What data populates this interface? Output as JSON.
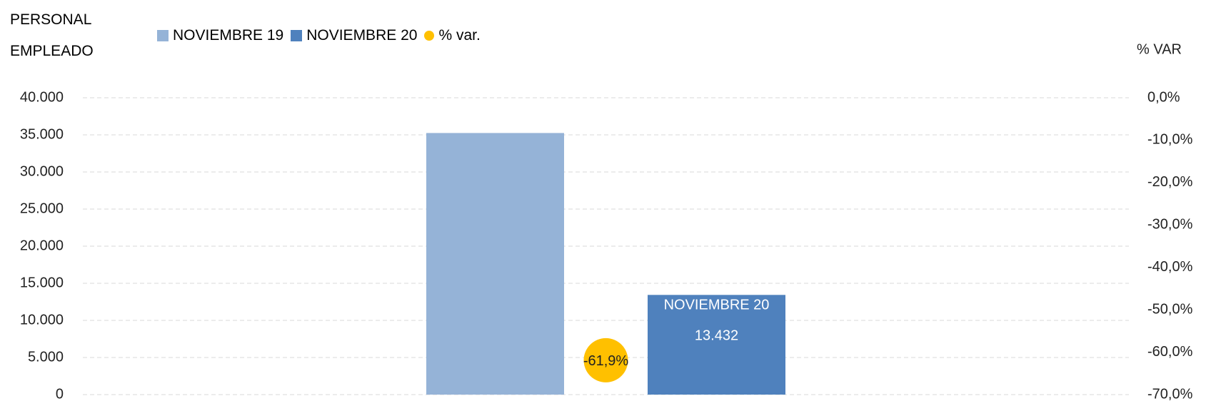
{
  "chart_data": {
    "type": "bar",
    "ylabel": "PERSONAL EMPLEADO",
    "y2label": "% VAR",
    "categories": [
      null
    ],
    "series": [
      {
        "name": "NOVIEMBRE 19",
        "color": "#95b3d7",
        "values": [
          35250
        ]
      },
      {
        "name": "NOVIEMBRE 20",
        "color": "#4f81bd",
        "values": [
          13432
        ],
        "value_labels": [
          "13.432"
        ]
      },
      {
        "name": "% var.",
        "color": "#ffc000",
        "axis": "y2",
        "type": "scatter",
        "values": [
          -61.9
        ],
        "value_labels": [
          "-61,9%"
        ]
      }
    ],
    "ylim": [
      0,
      40000
    ],
    "yticks": [
      0,
      {
        "value": 5000,
        "label": "5.000"
      },
      {
        "value": 10000,
        "label": "10.000"
      },
      {
        "value": 15000,
        "label": "15.000"
      },
      {
        "value": 20000,
        "label": "20.000"
      },
      {
        "value": 25000,
        "label": "25.000"
      },
      {
        "value": 30000,
        "label": "30.000"
      },
      {
        "value": 35000,
        "label": "35.000"
      },
      {
        "value": 40000,
        "label": "40.000"
      }
    ],
    "y2lim": [
      -70,
      0
    ],
    "y2ticks": [
      {
        "value": 0,
        "label": "0,0%"
      },
      {
        "value": -10,
        "label": "-10,0%"
      },
      {
        "value": -20,
        "label": "-20,0%"
      },
      {
        "value": -30,
        "label": "-30,0%"
      },
      {
        "value": -40,
        "label": "-40,0%"
      },
      {
        "value": -50,
        "label": "-50,0%"
      },
      {
        "value": -60,
        "label": "-60,0%"
      },
      {
        "value": -70,
        "label": "-70,0%"
      }
    ],
    "grid": true,
    "legend": "top"
  }
}
